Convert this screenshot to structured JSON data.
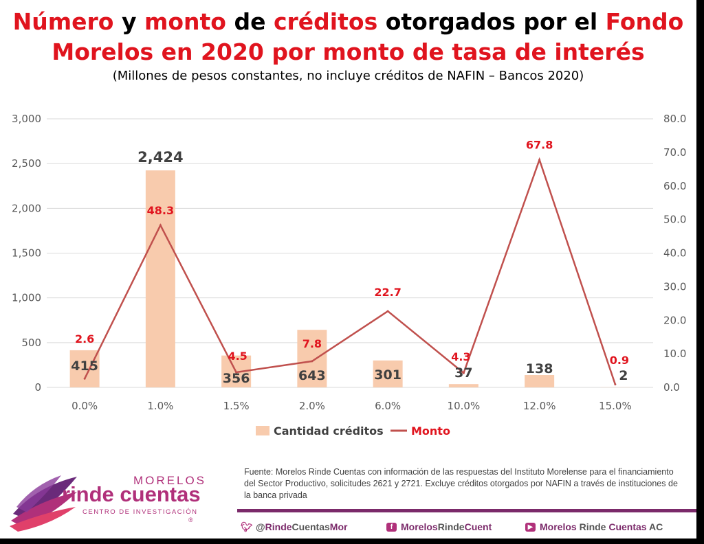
{
  "title": {
    "line1": [
      {
        "text": "Número",
        "red": true
      },
      {
        "text": " y ",
        "red": false
      },
      {
        "text": "monto",
        "red": true
      },
      {
        "text": " de ",
        "red": false
      },
      {
        "text": "créditos",
        "red": true
      },
      {
        "text": " otorgados por el ",
        "red": false
      },
      {
        "text": "Fondo",
        "red": true
      }
    ],
    "line2": "Morelos en 2020 por monto de tasa de interés"
  },
  "subtitle": "(Millones de pesos constantes, no incluye créditos de NAFIN – Bancos 2020)",
  "colors": {
    "bar": "#f8cbad",
    "line": "#c0504d",
    "red_text": "#e0141e",
    "grid": "#d9d9d9",
    "brand": "#b0307a"
  },
  "chart_data": {
    "type": "bar",
    "categories": [
      "0.0%",
      "1.0%",
      "1.5%",
      "2.0%",
      "6.0%",
      "10.0%",
      "12.0%",
      "15.0%"
    ],
    "series": [
      {
        "name": "Cantidad créditos",
        "type": "bar",
        "axis": "left",
        "values": [
          415,
          2424,
          356,
          643,
          301,
          37,
          138,
          2
        ]
      },
      {
        "name": "Monto",
        "type": "line",
        "axis": "right",
        "values": [
          2.6,
          48.3,
          4.5,
          7.8,
          22.7,
          4.3,
          67.8,
          0.9
        ]
      }
    ],
    "bar_labels": [
      "415",
      "2,424",
      "356",
      "643",
      "301",
      "37",
      "138",
      "2"
    ],
    "line_labels": [
      "2.6",
      "48.3",
      "4.5",
      "7.8",
      "22.7",
      "4.3",
      "67.8",
      "0.9"
    ],
    "y_left": {
      "range": [
        0,
        3000
      ],
      "ticks": [
        "0",
        "500",
        "1,000",
        "1,500",
        "2,000",
        "2,500",
        "3,000"
      ]
    },
    "y_right": {
      "range": [
        0,
        80
      ],
      "ticks": [
        "0.0",
        "10.0",
        "20.0",
        "30.0",
        "40.0",
        "50.0",
        "60.0",
        "70.0",
        "80.0"
      ]
    },
    "grid": true,
    "legend_position": "bottom"
  },
  "source": "Fuente: Morelos Rinde Cuentas con información de las respuestas del Instituto Morelense para el financiamiento del Sector Productivo, solicitudes 2621 y 2721. Excluye créditos otorgados por NAFIN a través de instituciones de la banca privada",
  "logo": {
    "top": "MORELOS",
    "main": "rinde cuentas",
    "sub": "CENTRO DE INVESTIGACIÓN",
    "reg": "®"
  },
  "social": {
    "twitter": {
      "icon": "twitter-icon",
      "pre": "@",
      "hl1": "Rinde",
      "mid": "Cuentas",
      "hl2": "Mor"
    },
    "facebook": {
      "icon": "facebook-icon",
      "hl1": "Morelos",
      "mid": "Rinde",
      "hl2": "Cuent"
    },
    "youtube": {
      "icon": "youtube-icon",
      "hl1": "Morelos",
      "mid": " Rinde ",
      "hl2": "Cuentas",
      "post": " AC"
    }
  }
}
